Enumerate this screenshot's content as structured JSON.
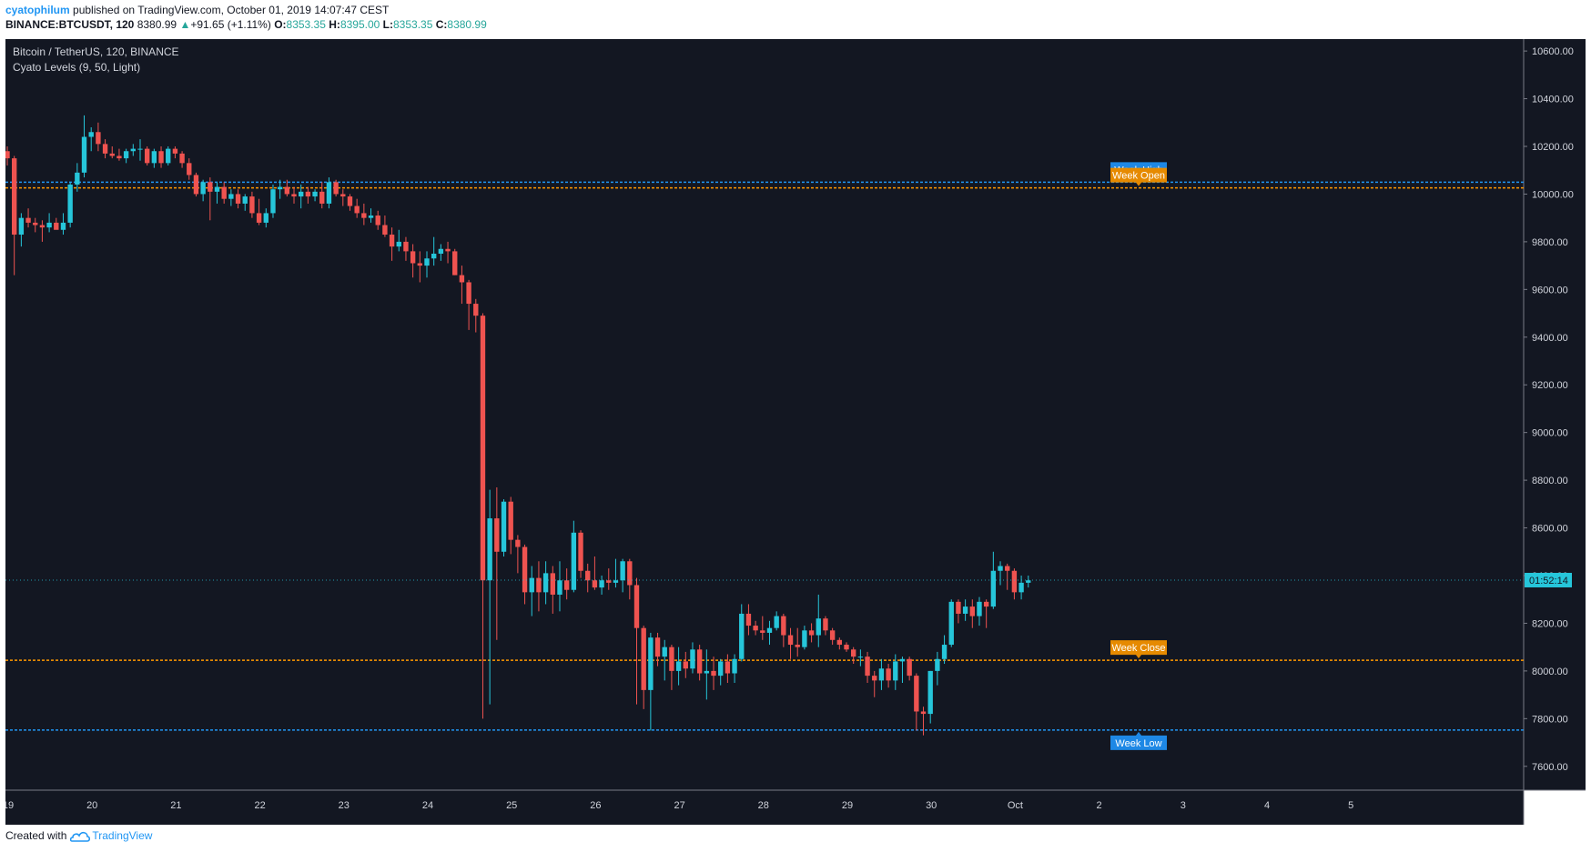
{
  "header": {
    "author": "cyatophilum",
    "published_text": "published on TradingView.com, October 01, 2019 14:07:47 CEST",
    "symbol": "BINANCE:BTCUSDT, 120",
    "last": "8380.99",
    "change": "+91.65 (+1.11%)",
    "open_label": "O:",
    "open": "8353.35",
    "high_label": "H:",
    "high": "8395.00",
    "low_label": "L:",
    "low": "8353.35",
    "close_label": "C:",
    "close": "8380.99"
  },
  "footer": {
    "created_with": "Created with",
    "brand": "TradingView"
  },
  "colors": {
    "background": "#131722",
    "up": "#26c6da",
    "down": "#ef5350",
    "level_blue": "#2196f3",
    "level_orange": "#ff9800",
    "label_orange": "#e68a00",
    "label_blue": "#1e88e5",
    "axis_text": "#d1d4dc"
  },
  "chart_data": {
    "type": "candlestick",
    "title": "Bitcoin / TetherUS, 120, BINANCE",
    "indicator": "Cyato Levels (9, 50, Light)",
    "ylim": [
      7500,
      10650
    ],
    "y_ticks": [
      "10600.00",
      "10400.00",
      "10200.00",
      "10000.00",
      "9800.00",
      "9600.00",
      "9400.00",
      "9200.00",
      "9000.00",
      "8800.00",
      "8600.00",
      "8400.00",
      "8200.00",
      "8000.00",
      "7800.00",
      "7600.00"
    ],
    "x_ticks": [
      "19",
      "20",
      "21",
      "22",
      "23",
      "24",
      "25",
      "26",
      "27",
      "28",
      "29",
      "30",
      "Oct",
      "2",
      "3",
      "4",
      "5"
    ],
    "countdown": "01:52:14",
    "last_price": 8380.99,
    "levels": [
      {
        "name": "Week High",
        "value": 10050,
        "color": "#2196f3"
      },
      {
        "name": "Week Open",
        "value": 10026,
        "color": "#ff9800"
      },
      {
        "name": "Week Close",
        "value": 8045,
        "color": "#ff9800"
      },
      {
        "name": "Week Low",
        "value": 7752,
        "color": "#2196f3"
      }
    ],
    "candle_fields": [
      "open",
      "high",
      "low",
      "close"
    ],
    "candles": [
      [
        10180,
        10200,
        10120,
        10150
      ],
      [
        10150,
        10160,
        9660,
        9830
      ],
      [
        9830,
        9920,
        9780,
        9900
      ],
      [
        9900,
        9940,
        9860,
        9880
      ],
      [
        9880,
        9900,
        9840,
        9870
      ],
      [
        9870,
        9890,
        9800,
        9860
      ],
      [
        9860,
        9920,
        9840,
        9880
      ],
      [
        9880,
        9900,
        9860,
        9850
      ],
      [
        9850,
        9920,
        9830,
        9880
      ],
      [
        9880,
        10050,
        9860,
        10040
      ],
      [
        10040,
        10130,
        10010,
        10090
      ],
      [
        10090,
        10330,
        10070,
        10240
      ],
      [
        10240,
        10280,
        10180,
        10260
      ],
      [
        10260,
        10300,
        10180,
        10210
      ],
      [
        10210,
        10230,
        10150,
        10170
      ],
      [
        10170,
        10200,
        10150,
        10160
      ],
      [
        10160,
        10190,
        10140,
        10150
      ],
      [
        10150,
        10190,
        10130,
        10180
      ],
      [
        10180,
        10210,
        10160,
        10190
      ],
      [
        10190,
        10230,
        10140,
        10190
      ],
      [
        10190,
        10200,
        10120,
        10130
      ],
      [
        10130,
        10190,
        10110,
        10180
      ],
      [
        10180,
        10200,
        10110,
        10130
      ],
      [
        10130,
        10200,
        10120,
        10190
      ],
      [
        10190,
        10200,
        10150,
        10170
      ],
      [
        10170,
        10180,
        10110,
        10130
      ],
      [
        10130,
        10150,
        10060,
        10080
      ],
      [
        10080,
        10090,
        9990,
        10000
      ],
      [
        10000,
        10060,
        9970,
        10050
      ],
      [
        10050,
        10070,
        9890,
        10010
      ],
      [
        10010,
        10050,
        9960,
        10030
      ],
      [
        10030,
        10050,
        9960,
        9980
      ],
      [
        9980,
        10020,
        9950,
        10000
      ],
      [
        10000,
        10020,
        9940,
        9960
      ],
      [
        9960,
        10000,
        9930,
        9990
      ],
      [
        9990,
        10010,
        9900,
        9920
      ],
      [
        9920,
        9980,
        9870,
        9880
      ],
      [
        9880,
        9940,
        9860,
        9920
      ],
      [
        9920,
        10040,
        9900,
        10020
      ],
      [
        10020,
        10060,
        9980,
        10030
      ],
      [
        10030,
        10060,
        9990,
        10000
      ],
      [
        10000,
        10030,
        9960,
        9990
      ],
      [
        9990,
        10040,
        9940,
        10010
      ],
      [
        10010,
        10030,
        9960,
        9990
      ],
      [
        9990,
        10020,
        9970,
        10010
      ],
      [
        10010,
        10050,
        9940,
        9960
      ],
      [
        9960,
        10070,
        9940,
        10050
      ],
      [
        10050,
        10060,
        9990,
        10000
      ],
      [
        10000,
        10020,
        9950,
        9990
      ],
      [
        9990,
        10000,
        9930,
        9950
      ],
      [
        9950,
        9980,
        9900,
        9920
      ],
      [
        9920,
        9960,
        9870,
        9900
      ],
      [
        9900,
        9940,
        9880,
        9910
      ],
      [
        9910,
        9930,
        9850,
        9870
      ],
      [
        9870,
        9910,
        9820,
        9830
      ],
      [
        9830,
        9860,
        9720,
        9780
      ],
      [
        9780,
        9850,
        9760,
        9800
      ],
      [
        9800,
        9820,
        9720,
        9760
      ],
      [
        9760,
        9790,
        9650,
        9710
      ],
      [
        9710,
        9760,
        9630,
        9700
      ],
      [
        9700,
        9760,
        9650,
        9730
      ],
      [
        9730,
        9820,
        9700,
        9750
      ],
      [
        9750,
        9790,
        9720,
        9770
      ],
      [
        9770,
        9800,
        9710,
        9760
      ],
      [
        9760,
        9770,
        9660,
        9660
      ],
      [
        9660,
        9700,
        9540,
        9630
      ],
      [
        9630,
        9640,
        9430,
        9540
      ],
      [
        9540,
        9560,
        9420,
        9490
      ],
      [
        9490,
        9500,
        7800,
        8380
      ],
      [
        8380,
        8760,
        7860,
        8640
      ],
      [
        8640,
        8770,
        8130,
        8500
      ],
      [
        8500,
        8720,
        8480,
        8710
      ],
      [
        8710,
        8730,
        8490,
        8550
      ],
      [
        8550,
        8570,
        8410,
        8520
      ],
      [
        8520,
        8530,
        8280,
        8330
      ],
      [
        8330,
        8440,
        8230,
        8390
      ],
      [
        8390,
        8460,
        8250,
        8330
      ],
      [
        8330,
        8460,
        8280,
        8410
      ],
      [
        8410,
        8440,
        8240,
        8320
      ],
      [
        8320,
        8460,
        8250,
        8380
      ],
      [
        8380,
        8430,
        8300,
        8340
      ],
      [
        8340,
        8630,
        8330,
        8580
      ],
      [
        8580,
        8590,
        8390,
        8420
      ],
      [
        8420,
        8450,
        8330,
        8380
      ],
      [
        8380,
        8480,
        8340,
        8350
      ],
      [
        8350,
        8400,
        8320,
        8380
      ],
      [
        8380,
        8430,
        8340,
        8370
      ],
      [
        8370,
        8470,
        8350,
        8380
      ],
      [
        8380,
        8470,
        8330,
        8460
      ],
      [
        8460,
        8470,
        8300,
        8360
      ],
      [
        8360,
        8390,
        7860,
        8180
      ],
      [
        8180,
        8190,
        7840,
        7920
      ],
      [
        7920,
        8160,
        7750,
        8140
      ],
      [
        8140,
        8160,
        8020,
        8060
      ],
      [
        8060,
        8130,
        7960,
        8100
      ],
      [
        8100,
        8110,
        7920,
        8000
      ],
      [
        8000,
        8100,
        7940,
        8040
      ],
      [
        8040,
        8080,
        7970,
        8010
      ],
      [
        8010,
        8120,
        7990,
        8090
      ],
      [
        8090,
        8110,
        7960,
        7990
      ],
      [
        7990,
        8090,
        7880,
        8000
      ],
      [
        8000,
        8060,
        7920,
        7980
      ],
      [
        7980,
        8050,
        7940,
        8040
      ],
      [
        8040,
        8070,
        7950,
        7990
      ],
      [
        7990,
        8070,
        7950,
        8050
      ],
      [
        8050,
        8280,
        8040,
        8240
      ],
      [
        8240,
        8280,
        8150,
        8190
      ],
      [
        8190,
        8210,
        8150,
        8170
      ],
      [
        8170,
        8230,
        8130,
        8160
      ],
      [
        8160,
        8210,
        8110,
        8180
      ],
      [
        8180,
        8250,
        8170,
        8230
      ],
      [
        8230,
        8240,
        8100,
        8150
      ],
      [
        8150,
        8180,
        8050,
        8110
      ],
      [
        8110,
        8180,
        8060,
        8100
      ],
      [
        8100,
        8190,
        8090,
        8170
      ],
      [
        8170,
        8200,
        8120,
        8150
      ],
      [
        8150,
        8320,
        8100,
        8220
      ],
      [
        8220,
        8230,
        8150,
        8170
      ],
      [
        8170,
        8180,
        8110,
        8130
      ],
      [
        8130,
        8140,
        8090,
        8110
      ],
      [
        8110,
        8120,
        8080,
        8090
      ],
      [
        8090,
        8100,
        8030,
        8060
      ],
      [
        8060,
        8090,
        8020,
        8060
      ],
      [
        8060,
        8080,
        7950,
        7980
      ],
      [
        7980,
        8000,
        7890,
        7960
      ],
      [
        7960,
        8050,
        7920,
        8010
      ],
      [
        8010,
        8030,
        7930,
        7960
      ],
      [
        7960,
        8070,
        7920,
        8040
      ],
      [
        8040,
        8060,
        7950,
        8050
      ],
      [
        8050,
        8060,
        7960,
        7980
      ],
      [
        7980,
        7990,
        7750,
        7830
      ],
      [
        7830,
        7850,
        7730,
        7820
      ],
      [
        7820,
        8000,
        7780,
        8000
      ],
      [
        8000,
        8080,
        7940,
        8050
      ],
      [
        8050,
        8150,
        8030,
        8110
      ],
      [
        8110,
        8300,
        8100,
        8290
      ],
      [
        8290,
        8300,
        8200,
        8240
      ],
      [
        8240,
        8300,
        8210,
        8270
      ],
      [
        8270,
        8300,
        8180,
        8230
      ],
      [
        8230,
        8310,
        8190,
        8290
      ],
      [
        8290,
        8300,
        8180,
        8270
      ],
      [
        8270,
        8500,
        8260,
        8420
      ],
      [
        8420,
        8460,
        8360,
        8440
      ],
      [
        8440,
        8450,
        8340,
        8420
      ],
      [
        8420,
        8430,
        8300,
        8330
      ],
      [
        8330,
        8400,
        8300,
        8370
      ],
      [
        8370,
        8400,
        8350,
        8380
      ]
    ]
  }
}
